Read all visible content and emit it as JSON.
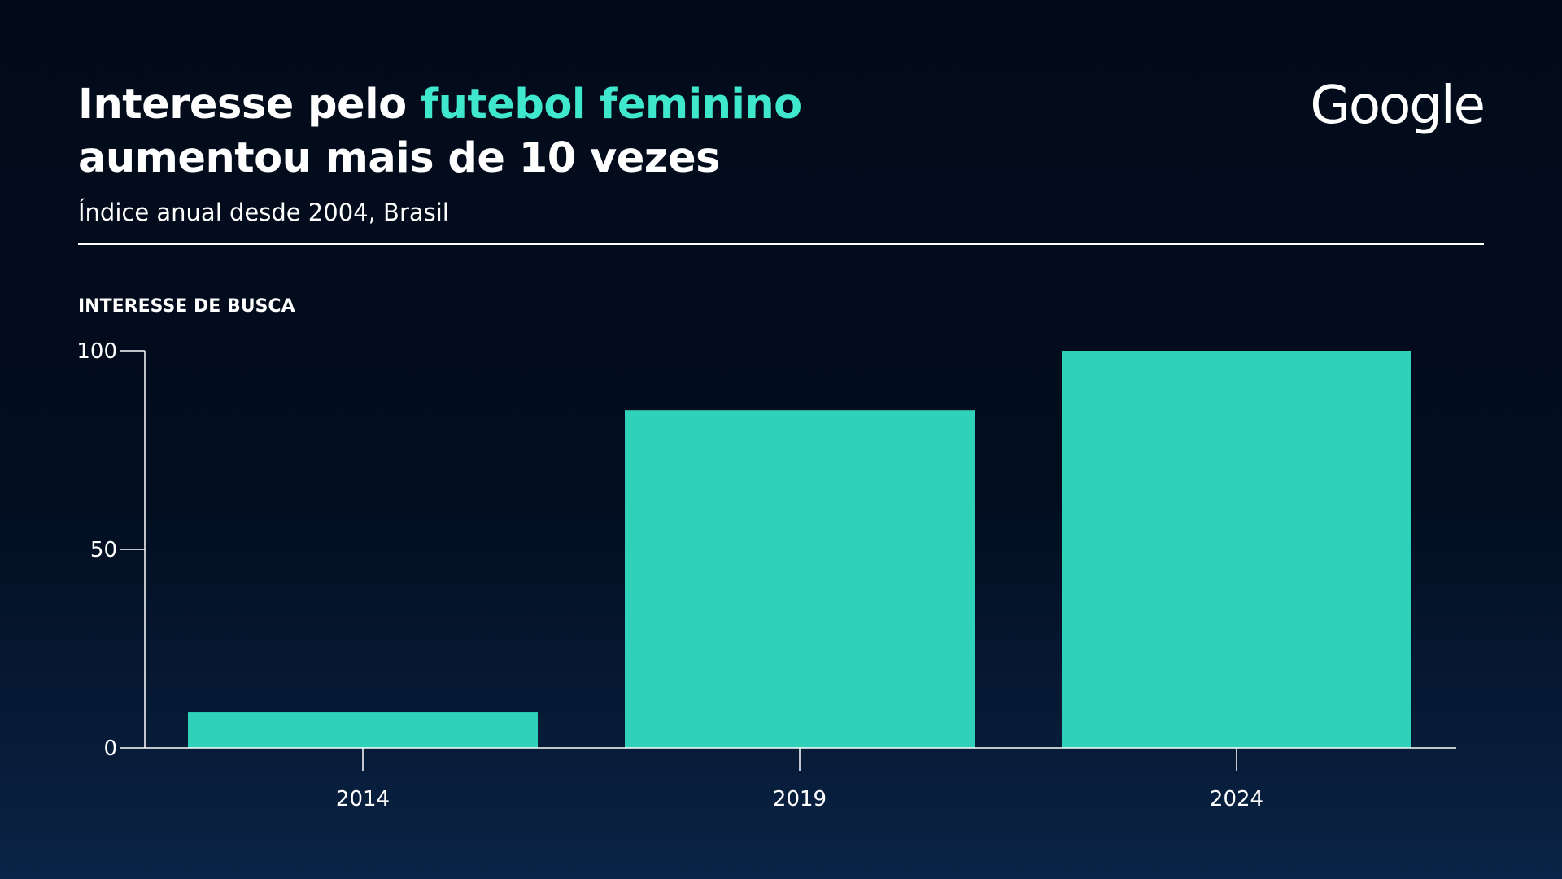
{
  "header": {
    "title_part1": "Interesse pelo ",
    "title_highlight": "futebol feminino",
    "title_line2": "aumentou mais de 10 vezes",
    "subtitle": "Índice anual desde 2004, Brasil",
    "logo": "Google"
  },
  "colors": {
    "accent": "#3fe8cc",
    "bar": "#2fd2b9",
    "background": "#020b1a"
  },
  "chart_data": {
    "type": "bar",
    "ylabel": "INTERESSE DE BUSCA",
    "categories": [
      "2014",
      "2019",
      "2024"
    ],
    "values": [
      9,
      85,
      100
    ],
    "yticks": [
      0,
      50,
      100
    ],
    "ylim": [
      0,
      100
    ],
    "grid": false
  }
}
